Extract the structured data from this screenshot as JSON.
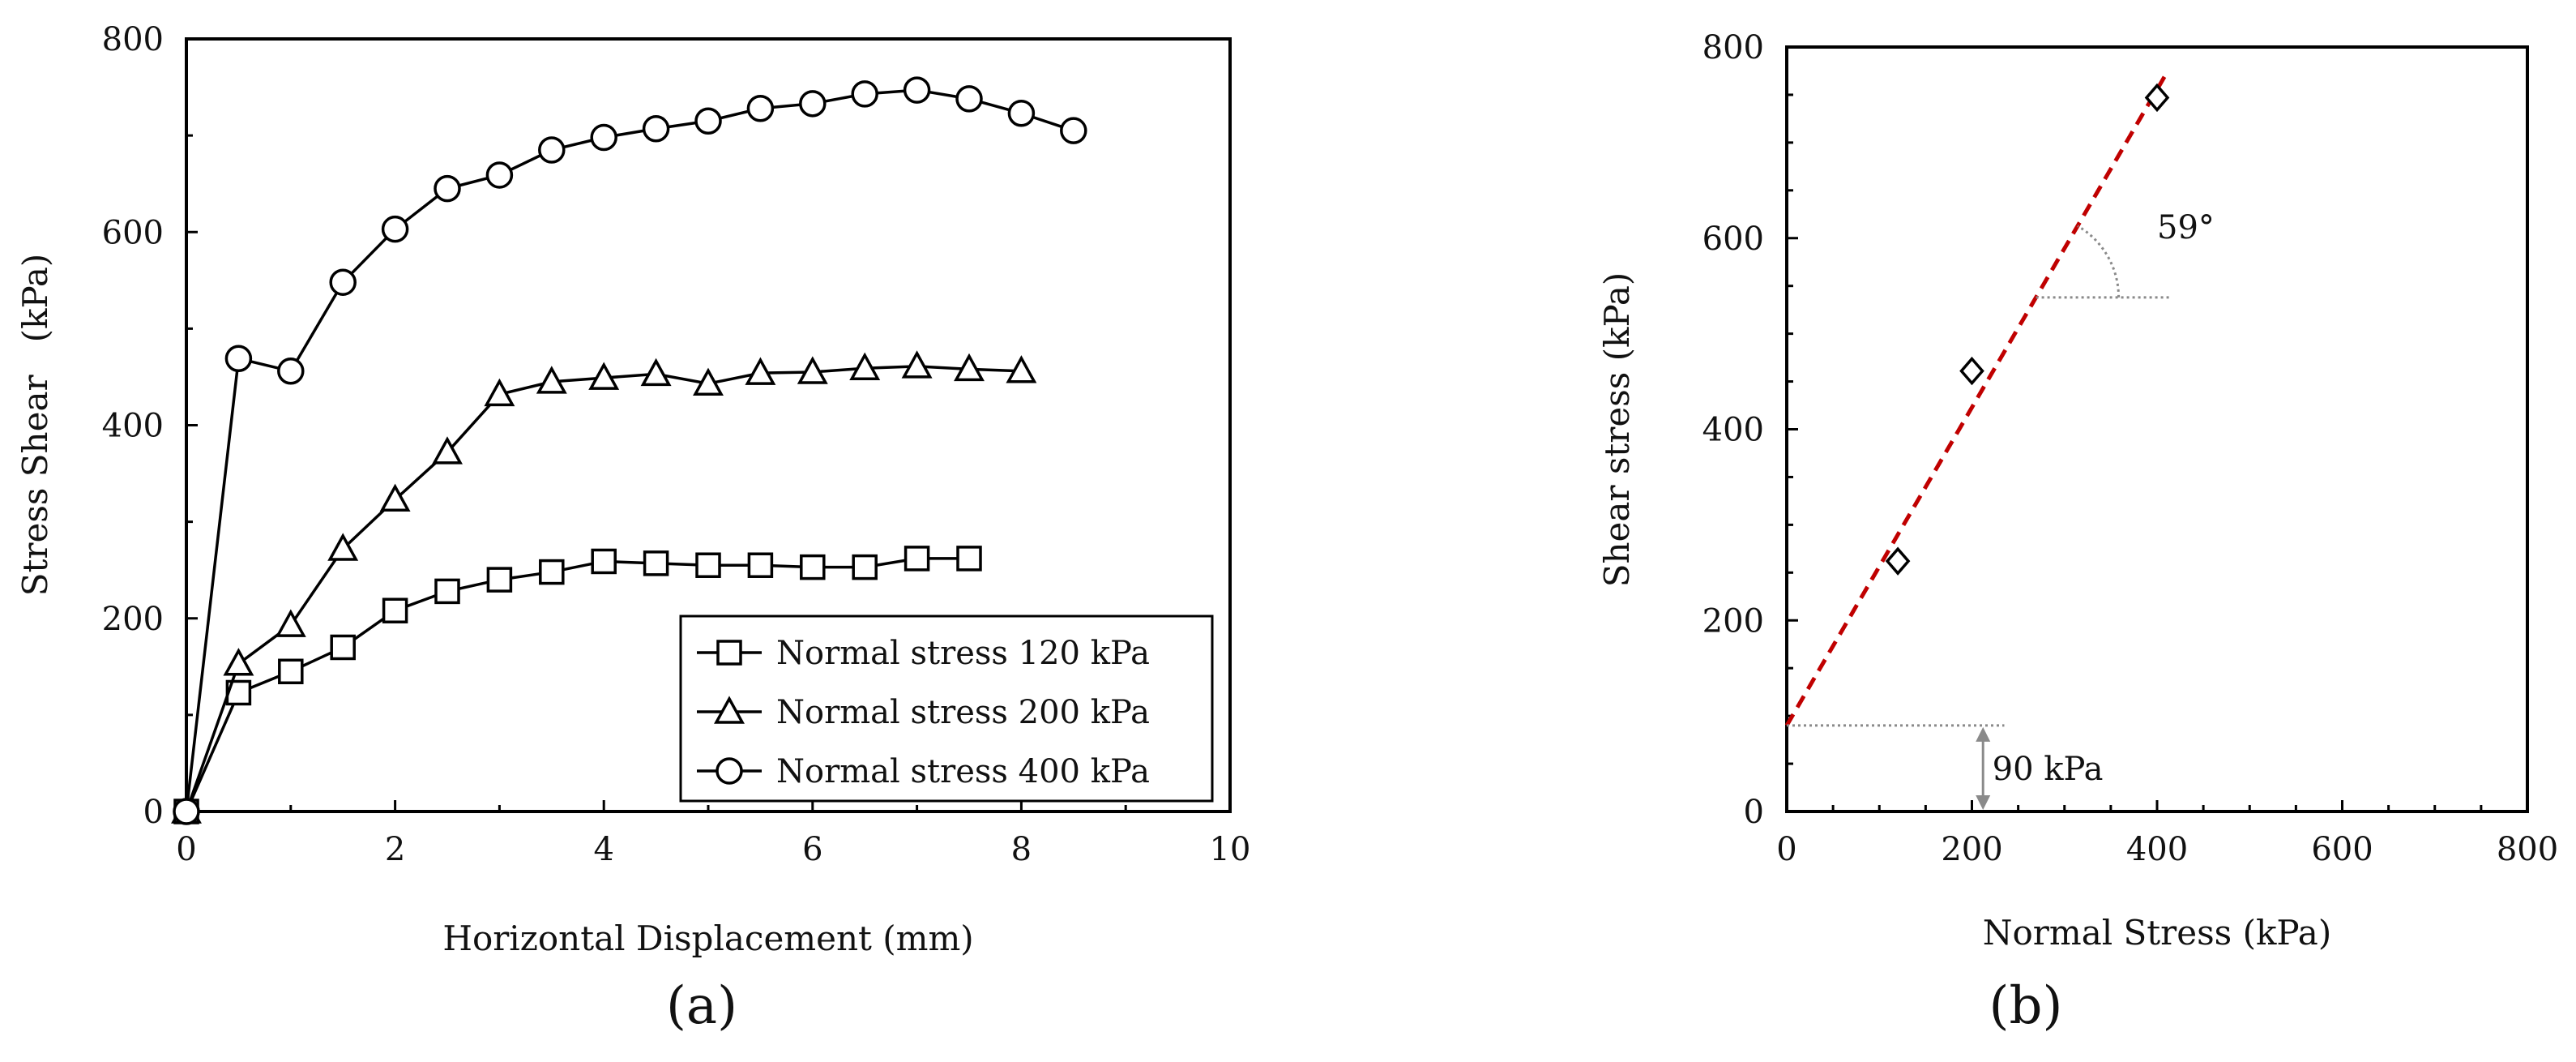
{
  "chart_data": [
    {
      "type": "line",
      "panel_label": "(a)",
      "xlabel": "Horizontal Displacement (mm)",
      "ylabel": "Stress Shear   (kPa)",
      "xlim": [
        0,
        10
      ],
      "ylim": [
        0,
        800
      ],
      "xticks": [
        0,
        2,
        4,
        6,
        8,
        10
      ],
      "yticks": [
        0,
        200,
        400,
        600,
        800
      ],
      "grid": false,
      "legend_position": "bottom-right",
      "series": [
        {
          "name": "Normal stress 120 kPa",
          "marker": "square",
          "x": [
            0,
            0.5,
            1,
            1.5,
            2,
            2.5,
            3,
            3.5,
            4,
            4.5,
            5,
            5.5,
            6,
            6.5,
            7,
            7.5
          ],
          "y": [
            0,
            123,
            145,
            170,
            208,
            228,
            240,
            248,
            259,
            257,
            255,
            255,
            253,
            253,
            262,
            262
          ]
        },
        {
          "name": "Normal stress 200 kPa",
          "marker": "triangle",
          "x": [
            0,
            0.5,
            1,
            1.5,
            2,
            2.5,
            3,
            3.5,
            4,
            4.5,
            5,
            5.5,
            6,
            6.5,
            7,
            7.5,
            8
          ],
          "y": [
            0,
            153,
            193,
            272,
            323,
            372,
            432,
            445,
            449,
            453,
            443,
            454,
            455,
            459,
            461,
            458,
            456
          ]
        },
        {
          "name": "Normal stress 400 kPa",
          "marker": "circle",
          "x": [
            0,
            0.5,
            1,
            1.5,
            2,
            2.5,
            3,
            3.5,
            4,
            4.5,
            5,
            5.5,
            6,
            6.5,
            7,
            7.5,
            8,
            8.5
          ],
          "y": [
            0,
            469,
            456,
            548,
            603,
            645,
            659,
            685,
            698,
            707,
            715,
            728,
            733,
            743,
            747,
            738,
            723,
            705
          ]
        }
      ]
    },
    {
      "type": "scatter",
      "panel_label": "(b)",
      "xlabel": "Normal Stress (kPa)",
      "ylabel": "Shear stress (kPa)",
      "xlim": [
        0,
        800
      ],
      "ylim": [
        0,
        800
      ],
      "xticks": [
        0,
        200,
        400,
        600,
        800
      ],
      "yticks": [
        0,
        200,
        400,
        600,
        800
      ],
      "grid": false,
      "points": {
        "marker": "diamond",
        "x": [
          120,
          200,
          400
        ],
        "y": [
          262,
          461,
          747
        ]
      },
      "fit_line": {
        "intercept": 90,
        "slope": 1.664,
        "x_range": [
          0,
          410
        ],
        "style": "dashed",
        "color": "#c00000"
      },
      "annotations": [
        {
          "text": "59°",
          "kind": "angle",
          "x": 400,
          "y": 600
        },
        {
          "text": "90 kPa",
          "kind": "intercept",
          "x": 215,
          "y": 45
        }
      ]
    }
  ]
}
